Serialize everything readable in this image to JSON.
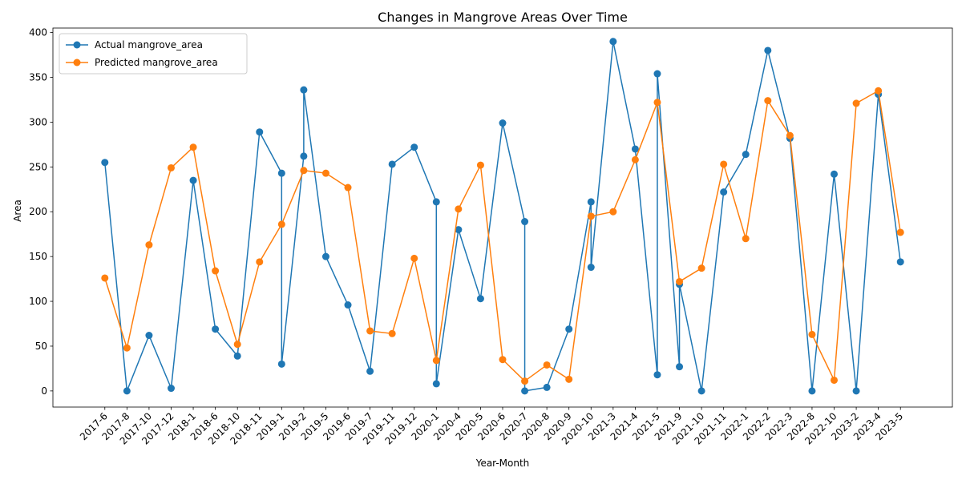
{
  "chart_data": {
    "type": "line",
    "title": "Changes in Mangrove Areas Over Time",
    "xlabel": "Year-Month",
    "ylabel": "Area",
    "ylim": [
      -18,
      405
    ],
    "yticks": [
      0,
      50,
      100,
      150,
      200,
      250,
      300,
      350,
      400
    ],
    "grid": false,
    "legend_position": "upper-left",
    "categories": [
      "2017-6",
      "2017-8",
      "2017-10",
      "2017-12",
      "2018-1",
      "2018-6",
      "2018-10",
      "2018-11",
      "2019-1",
      "2019-2",
      "2019-5",
      "2019-6",
      "2019-7",
      "2019-11",
      "2019-12",
      "2020-1",
      "2020-4",
      "2020-5",
      "2020-6",
      "2020-7",
      "2020-8",
      "2020-9",
      "2020-10",
      "2021-3",
      "2021-4",
      "2021-5",
      "2021-9",
      "2021-10",
      "2021-11",
      "2022-1",
      "2022-2",
      "2022-3",
      "2022-8",
      "2022-10",
      "2023-2",
      "2023-4",
      "2023-5"
    ],
    "series": [
      {
        "name": "Actual mangrove_area",
        "color": "#1f77b4",
        "points": [
          [
            "2017-6",
            255
          ],
          [
            "2017-8",
            0
          ],
          [
            "2017-10",
            62
          ],
          [
            "2017-12",
            3
          ],
          [
            "2018-1",
            235
          ],
          [
            "2018-6",
            69
          ],
          [
            "2018-10",
            39
          ],
          [
            "2018-11",
            289
          ],
          [
            "2019-1",
            243
          ],
          [
            "2019-1",
            30
          ],
          [
            "2019-2",
            262
          ],
          [
            "2019-2",
            336
          ],
          [
            "2019-5",
            150
          ],
          [
            "2019-6",
            96
          ],
          [
            "2019-7",
            22
          ],
          [
            "2019-11",
            253
          ],
          [
            "2019-12",
            272
          ],
          [
            "2020-1",
            211
          ],
          [
            "2020-1",
            8
          ],
          [
            "2020-4",
            180
          ],
          [
            "2020-5",
            103
          ],
          [
            "2020-6",
            299
          ],
          [
            "2020-7",
            189
          ],
          [
            "2020-7",
            0
          ],
          [
            "2020-8",
            4
          ],
          [
            "2020-9",
            69
          ],
          [
            "2020-10",
            211
          ],
          [
            "2020-10",
            138
          ],
          [
            "2021-3",
            390
          ],
          [
            "2021-4",
            270
          ],
          [
            "2021-5",
            18
          ],
          [
            "2021-5",
            354
          ],
          [
            "2021-9",
            27
          ],
          [
            "2021-9",
            119
          ],
          [
            "2021-10",
            0
          ],
          [
            "2021-11",
            222
          ],
          [
            "2022-1",
            264
          ],
          [
            "2022-2",
            380
          ],
          [
            "2022-3",
            282
          ],
          [
            "2022-8",
            0
          ],
          [
            "2022-10",
            242
          ],
          [
            "2023-2",
            0
          ],
          [
            "2023-4",
            331
          ],
          [
            "2023-5",
            144
          ]
        ]
      },
      {
        "name": "Predicted mangrove_area",
        "color": "#ff7f0e",
        "points": [
          [
            "2017-6",
            126
          ],
          [
            "2017-8",
            48
          ],
          [
            "2017-10",
            163
          ],
          [
            "2017-12",
            249
          ],
          [
            "2018-1",
            272
          ],
          [
            "2018-6",
            134
          ],
          [
            "2018-10",
            52
          ],
          [
            "2018-11",
            144
          ],
          [
            "2019-1",
            186
          ],
          [
            "2019-2",
            246
          ],
          [
            "2019-5",
            243
          ],
          [
            "2019-6",
            227
          ],
          [
            "2019-7",
            67
          ],
          [
            "2019-11",
            64
          ],
          [
            "2019-12",
            148
          ],
          [
            "2020-1",
            34
          ],
          [
            "2020-4",
            203
          ],
          [
            "2020-5",
            252
          ],
          [
            "2020-6",
            35
          ],
          [
            "2020-7",
            11
          ],
          [
            "2020-8",
            29
          ],
          [
            "2020-9",
            13
          ],
          [
            "2020-10",
            195
          ],
          [
            "2021-3",
            200
          ],
          [
            "2021-4",
            258
          ],
          [
            "2021-5",
            322
          ],
          [
            "2021-9",
            122
          ],
          [
            "2021-10",
            137
          ],
          [
            "2021-11",
            253
          ],
          [
            "2022-1",
            170
          ],
          [
            "2022-2",
            324
          ],
          [
            "2022-3",
            285
          ],
          [
            "2022-8",
            63
          ],
          [
            "2022-10",
            12
          ],
          [
            "2023-2",
            321
          ],
          [
            "2023-4",
            335
          ],
          [
            "2023-5",
            177
          ]
        ]
      }
    ]
  }
}
